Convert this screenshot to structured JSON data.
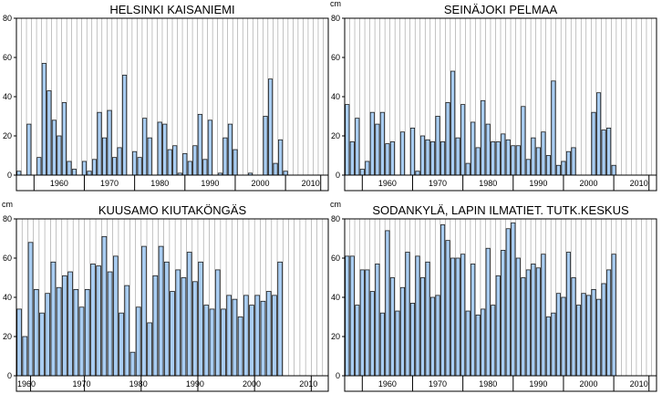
{
  "unit_label": "cm",
  "colors": {
    "bar_fill": "#a9cdf2",
    "bar_edge": "#1a1a1a",
    "grid": "#9a9a9a",
    "frame": "#000000"
  },
  "chart_data": [
    {
      "type": "bar",
      "title": "HELSINKI KAISANIEMI",
      "ylabel": "cm",
      "ylim": [
        0,
        80
      ],
      "yticks": [
        0,
        20,
        40,
        60,
        80
      ],
      "grid": true,
      "x": [
        1952,
        1953,
        1954,
        1955,
        1956,
        1957,
        1958,
        1959,
        1960,
        1961,
        1962,
        1963,
        1964,
        1965,
        1966,
        1967,
        1968,
        1969,
        1970,
        1971,
        1972,
        1973,
        1974,
        1975,
        1976,
        1977,
        1978,
        1979,
        1980,
        1981,
        1982,
        1983,
        1984,
        1985,
        1986,
        1987,
        1988,
        1989,
        1990,
        1991,
        1992,
        1993,
        1994,
        1995,
        1996,
        1997,
        1998,
        1999,
        2000,
        2001,
        2002,
        2003,
        2004,
        2005,
        2006,
        2007,
        2008,
        2009,
        2010,
        2011,
        2012,
        2013
      ],
      "values": [
        2,
        0,
        26,
        0,
        9,
        57,
        43,
        28,
        20,
        37,
        7,
        3,
        0,
        7,
        2,
        8,
        32,
        19,
        33,
        9,
        14,
        51,
        0,
        12,
        9,
        29,
        19,
        0,
        27,
        26,
        13,
        15,
        1,
        11,
        7,
        15,
        31,
        8,
        28,
        0,
        1,
        19,
        26,
        13,
        0,
        0,
        1,
        0,
        0,
        30,
        49,
        6,
        18,
        2,
        0,
        0,
        0,
        0,
        0,
        0,
        0,
        0
      ],
      "decade_labels": [
        "1960",
        "1970",
        "1980",
        "1990",
        "2000",
        "2010"
      ],
      "decade_label_years": [
        1960,
        1970,
        1980,
        1990,
        2000,
        2010
      ],
      "decade_boundaries": [
        1955,
        1965,
        1975,
        1985,
        1995,
        2005,
        2012
      ],
      "xrange": [
        1951.5,
        2013.5
      ],
      "show_unit": false
    },
    {
      "type": "bar",
      "title": "SEINÄJOKI PELMAA",
      "ylabel": "cm",
      "ylim": [
        0,
        80
      ],
      "yticks": [
        0,
        20,
        40,
        60,
        80
      ],
      "grid": true,
      "x": [
        1952,
        1953,
        1954,
        1955,
        1956,
        1957,
        1958,
        1959,
        1960,
        1961,
        1962,
        1963,
        1964,
        1965,
        1966,
        1967,
        1968,
        1969,
        1970,
        1971,
        1972,
        1973,
        1974,
        1975,
        1976,
        1977,
        1978,
        1979,
        1980,
        1981,
        1982,
        1983,
        1984,
        1985,
        1986,
        1987,
        1988,
        1989,
        1990,
        1991,
        1992,
        1993,
        1994,
        1995,
        1996,
        1997,
        1998,
        1999,
        2000,
        2001,
        2002,
        2003,
        2004,
        2005,
        2006,
        2007,
        2008,
        2009,
        2010,
        2011,
        2012,
        2013
      ],
      "values": [
        36,
        17,
        29,
        3,
        7,
        32,
        26,
        32,
        16,
        17,
        0,
        22,
        0,
        24,
        2,
        20,
        18,
        17,
        30,
        17,
        37,
        53,
        19,
        36,
        6,
        27,
        14,
        38,
        26,
        17,
        17,
        21,
        18,
        15,
        15,
        35,
        8,
        19,
        14,
        22,
        10,
        48,
        5,
        7,
        12,
        14,
        0,
        0,
        0,
        32,
        42,
        23,
        24,
        5,
        0,
        0,
        0,
        0,
        0,
        0,
        0,
        0
      ],
      "decade_labels": [
        "1960",
        "1970",
        "1980",
        "1990",
        "2000",
        "2010"
      ],
      "decade_label_years": [
        1960,
        1970,
        1980,
        1990,
        2000,
        2010
      ],
      "decade_boundaries": [
        1955,
        1965,
        1975,
        1985,
        1995,
        2005,
        2012
      ],
      "xrange": [
        1951.5,
        2013.5
      ],
      "show_unit": true
    },
    {
      "type": "bar",
      "title": "KUUSAMO KIUTAKÖNGÄS",
      "ylabel": "cm",
      "ylim": [
        0,
        80
      ],
      "yticks": [
        0,
        20,
        40,
        60,
        80
      ],
      "grid": true,
      "x": [
        1959,
        1960,
        1961,
        1962,
        1963,
        1964,
        1965,
        1966,
        1967,
        1968,
        1969,
        1970,
        1971,
        1972,
        1973,
        1974,
        1975,
        1976,
        1977,
        1978,
        1979,
        1980,
        1981,
        1982,
        1983,
        1984,
        1985,
        1986,
        1987,
        1988,
        1989,
        1990,
        1991,
        1992,
        1993,
        1994,
        1995,
        1996,
        1997,
        1998,
        1999,
        2000,
        2001,
        2002,
        2003,
        2004,
        2005,
        2006,
        2007,
        2008,
        2009,
        2010,
        2011,
        2012,
        2013,
        2014
      ],
      "values": [
        34,
        20,
        68,
        44,
        32,
        42,
        58,
        45,
        51,
        53,
        44,
        35,
        44,
        57,
        56,
        71,
        53,
        61,
        32,
        46,
        12,
        35,
        66,
        27,
        51,
        66,
        58,
        43,
        54,
        50,
        63,
        48,
        58,
        36,
        34,
        54,
        34,
        41,
        39,
        30,
        41,
        36,
        41,
        38,
        43,
        41,
        58,
        0,
        0,
        0,
        0,
        0,
        0,
        0,
        0,
        0
      ],
      "decade_labels": [
        "1960",
        "1970",
        "1980",
        "1990",
        "2000",
        "2010"
      ],
      "decade_label_years": [
        1960,
        1970,
        1980,
        1990,
        2000,
        2010
      ],
      "decade_boundaries": [
        1961,
        1970.5,
        1980.5,
        1990.5,
        2000.5,
        2010.5
      ],
      "xrange": [
        1958.5,
        2013.5
      ],
      "show_unit": true
    },
    {
      "type": "bar",
      "title": "SODANKYLÄ, LAPIN ILMATIET. TUTK.KESKUS",
      "ylabel": "cm",
      "ylim": [
        0,
        80
      ],
      "yticks": [
        0,
        20,
        40,
        60,
        80
      ],
      "grid": true,
      "x": [
        1952,
        1953,
        1954,
        1955,
        1956,
        1957,
        1958,
        1959,
        1960,
        1961,
        1962,
        1963,
        1964,
        1965,
        1966,
        1967,
        1968,
        1969,
        1970,
        1971,
        1972,
        1973,
        1974,
        1975,
        1976,
        1977,
        1978,
        1979,
        1980,
        1981,
        1982,
        1983,
        1984,
        1985,
        1986,
        1987,
        1988,
        1989,
        1990,
        1991,
        1992,
        1993,
        1994,
        1995,
        1996,
        1997,
        1998,
        1999,
        2000,
        2001,
        2002,
        2003,
        2004,
        2005,
        2006,
        2007,
        2008,
        2009,
        2010,
        2011,
        2012,
        2013
      ],
      "values": [
        61,
        61,
        36,
        54,
        54,
        43,
        57,
        32,
        74,
        50,
        33,
        45,
        63,
        37,
        61,
        50,
        58,
        40,
        41,
        77,
        69,
        60,
        60,
        62,
        33,
        57,
        31,
        34,
        65,
        36,
        51,
        64,
        75,
        78,
        60,
        50,
        54,
        57,
        55,
        62,
        30,
        32,
        42,
        40,
        63,
        50,
        36,
        42,
        41,
        44,
        39,
        47,
        54,
        62,
        0,
        0,
        0,
        0,
        0,
        0,
        0,
        0
      ],
      "decade_labels": [
        "1960",
        "1970",
        "1980",
        "1990",
        "2000",
        "2010"
      ],
      "decade_label_years": [
        1960,
        1970,
        1980,
        1990,
        2000,
        2010
      ],
      "decade_boundaries": [
        1955,
        1965,
        1975,
        1985,
        1995,
        2005,
        2012
      ],
      "xrange": [
        1951.5,
        2013.5
      ],
      "show_unit": true
    }
  ]
}
